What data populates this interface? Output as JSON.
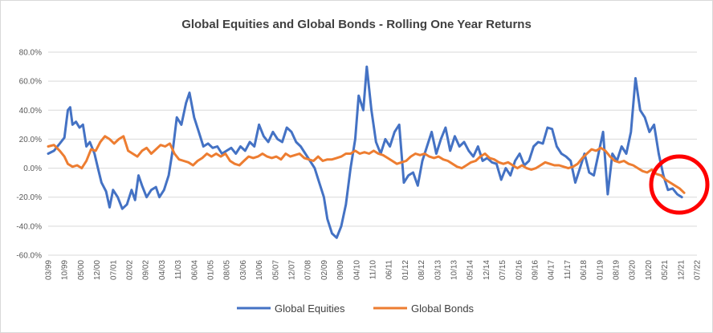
{
  "chart_data": {
    "type": "line",
    "title": "Global Equities and Global Bonds - Rolling One Year Returns",
    "xlabel": "",
    "ylabel": "",
    "ylim": [
      -60,
      80
    ],
    "y_ticks": [
      "80.0%",
      "60.0%",
      "40.0%",
      "20.0%",
      "0.0%",
      "-20.0%",
      "-40.0%",
      "-60.0%"
    ],
    "x_tick_labels": [
      "03/99",
      "10/99",
      "05/00",
      "12/00",
      "07/01",
      "02/02",
      "09/02",
      "04/03",
      "11/03",
      "06/04",
      "01/05",
      "08/05",
      "03/06",
      "10/06",
      "05/07",
      "12/07",
      "07/08",
      "02/09",
      "09/09",
      "04/10",
      "11/10",
      "06/11",
      "01/12",
      "08/12",
      "03/13",
      "10/13",
      "05/14",
      "12/14",
      "07/15",
      "02/16",
      "09/16",
      "04/17",
      "11/17",
      "06/18",
      "01/19",
      "08/19",
      "03/20",
      "10/20",
      "05/21",
      "12/21",
      "07/22"
    ],
    "legend_position": "bottom",
    "grid": true,
    "series": [
      {
        "name": "Global Equities",
        "color": "#4472C4",
        "points": [
          [
            0,
            10
          ],
          [
            0.5,
            12
          ],
          [
            1,
            17
          ],
          [
            1.4,
            21
          ],
          [
            1.7,
            40
          ],
          [
            1.9,
            42
          ],
          [
            2.1,
            30
          ],
          [
            2.4,
            32
          ],
          [
            2.7,
            28
          ],
          [
            3,
            30
          ],
          [
            3.3,
            15
          ],
          [
            3.6,
            18
          ],
          [
            4,
            10
          ],
          [
            4.3,
            0
          ],
          [
            4.6,
            -10
          ],
          [
            5,
            -16
          ],
          [
            5.3,
            -27
          ],
          [
            5.6,
            -15
          ],
          [
            6,
            -20
          ],
          [
            6.4,
            -28
          ],
          [
            6.8,
            -25
          ],
          [
            7.2,
            -15
          ],
          [
            7.5,
            -22
          ],
          [
            7.8,
            -5
          ],
          [
            8.1,
            -12
          ],
          [
            8.5,
            -20
          ],
          [
            8.9,
            -15
          ],
          [
            9.3,
            -13
          ],
          [
            9.6,
            -20
          ],
          [
            10,
            -15
          ],
          [
            10.4,
            -5
          ],
          [
            10.8,
            15
          ],
          [
            11.1,
            35
          ],
          [
            11.5,
            30
          ],
          [
            11.9,
            45
          ],
          [
            12.2,
            52
          ],
          [
            12.6,
            35
          ],
          [
            13,
            25
          ],
          [
            13.4,
            15
          ],
          [
            13.8,
            17
          ],
          [
            14.2,
            14
          ],
          [
            14.6,
            15
          ],
          [
            15,
            10
          ],
          [
            15.4,
            12
          ],
          [
            15.8,
            14
          ],
          [
            16.2,
            10
          ],
          [
            16.6,
            15
          ],
          [
            17,
            12
          ],
          [
            17.4,
            18
          ],
          [
            17.8,
            15
          ],
          [
            18.2,
            30
          ],
          [
            18.6,
            22
          ],
          [
            19,
            18
          ],
          [
            19.4,
            25
          ],
          [
            19.8,
            20
          ],
          [
            20.2,
            18
          ],
          [
            20.6,
            28
          ],
          [
            21,
            25
          ],
          [
            21.4,
            18
          ],
          [
            21.8,
            15
          ],
          [
            22.2,
            10
          ],
          [
            22.6,
            5
          ],
          [
            23,
            0
          ],
          [
            23.4,
            -10
          ],
          [
            23.8,
            -20
          ],
          [
            24.1,
            -35
          ],
          [
            24.5,
            -45
          ],
          [
            24.9,
            -48
          ],
          [
            25.3,
            -40
          ],
          [
            25.7,
            -25
          ],
          [
            26.1,
            0
          ],
          [
            26.5,
            20
          ],
          [
            26.8,
            50
          ],
          [
            27.2,
            40
          ],
          [
            27.5,
            70
          ],
          [
            27.9,
            40
          ],
          [
            28.3,
            18
          ],
          [
            28.7,
            10
          ],
          [
            29.1,
            20
          ],
          [
            29.5,
            15
          ],
          [
            29.9,
            25
          ],
          [
            30.3,
            30
          ],
          [
            30.7,
            -10
          ],
          [
            31.1,
            -5
          ],
          [
            31.5,
            -3
          ],
          [
            31.9,
            -12
          ],
          [
            32.3,
            5
          ],
          [
            32.7,
            15
          ],
          [
            33.1,
            25
          ],
          [
            33.5,
            10
          ],
          [
            33.9,
            20
          ],
          [
            34.3,
            28
          ],
          [
            34.7,
            12
          ],
          [
            35.1,
            22
          ],
          [
            35.5,
            15
          ],
          [
            35.9,
            18
          ],
          [
            36.3,
            12
          ],
          [
            36.7,
            8
          ],
          [
            37.1,
            15
          ],
          [
            37.5,
            5
          ],
          [
            37.9,
            7
          ],
          [
            38.3,
            4
          ],
          [
            38.7,
            3
          ],
          [
            39.1,
            -8
          ],
          [
            39.5,
            0
          ],
          [
            39.9,
            -5
          ],
          [
            40.3,
            5
          ],
          [
            40.7,
            10
          ],
          [
            41.1,
            2
          ],
          [
            41.5,
            5
          ],
          [
            41.9,
            15
          ],
          [
            42.3,
            18
          ],
          [
            42.7,
            17
          ],
          [
            43.1,
            28
          ],
          [
            43.5,
            27
          ],
          [
            43.9,
            15
          ],
          [
            44.3,
            10
          ],
          [
            44.7,
            8
          ],
          [
            45.1,
            5
          ],
          [
            45.5,
            -10
          ],
          [
            45.9,
            0
          ],
          [
            46.3,
            10
          ],
          [
            46.7,
            -3
          ],
          [
            47.1,
            -5
          ],
          [
            47.5,
            10
          ],
          [
            47.9,
            25
          ],
          [
            48.3,
            -18
          ],
          [
            48.7,
            10
          ],
          [
            49.1,
            5
          ],
          [
            49.5,
            15
          ],
          [
            49.9,
            10
          ],
          [
            50.3,
            25
          ],
          [
            50.7,
            62
          ],
          [
            51.1,
            40
          ],
          [
            51.5,
            35
          ],
          [
            51.9,
            25
          ],
          [
            52.3,
            30
          ],
          [
            52.7,
            10
          ],
          [
            53.1,
            -5
          ],
          [
            53.5,
            -15
          ],
          [
            53.9,
            -14
          ],
          [
            54.3,
            -18
          ],
          [
            54.7,
            -20
          ]
        ]
      },
      {
        "name": "Global Bonds",
        "color": "#ED7D31",
        "points": [
          [
            0,
            15
          ],
          [
            0.5,
            16
          ],
          [
            1,
            12
          ],
          [
            1.4,
            8
          ],
          [
            1.7,
            3
          ],
          [
            2.1,
            1
          ],
          [
            2.5,
            2
          ],
          [
            2.9,
            0
          ],
          [
            3.3,
            5
          ],
          [
            3.7,
            13
          ],
          [
            4.1,
            12
          ],
          [
            4.5,
            18
          ],
          [
            4.9,
            22
          ],
          [
            5.3,
            20
          ],
          [
            5.7,
            17
          ],
          [
            6.1,
            20
          ],
          [
            6.5,
            22
          ],
          [
            6.9,
            12
          ],
          [
            7.3,
            10
          ],
          [
            7.7,
            8
          ],
          [
            8.1,
            12
          ],
          [
            8.5,
            14
          ],
          [
            8.9,
            10
          ],
          [
            9.3,
            13
          ],
          [
            9.7,
            16
          ],
          [
            10.1,
            15
          ],
          [
            10.5,
            17
          ],
          [
            10.9,
            10
          ],
          [
            11.3,
            6
          ],
          [
            11.7,
            5
          ],
          [
            12.1,
            4
          ],
          [
            12.5,
            2
          ],
          [
            12.9,
            5
          ],
          [
            13.3,
            7
          ],
          [
            13.7,
            10
          ],
          [
            14.1,
            8
          ],
          [
            14.5,
            10
          ],
          [
            14.9,
            8
          ],
          [
            15.3,
            10
          ],
          [
            15.7,
            5
          ],
          [
            16.1,
            3
          ],
          [
            16.5,
            2
          ],
          [
            16.9,
            5
          ],
          [
            17.3,
            8
          ],
          [
            17.7,
            7
          ],
          [
            18.1,
            8
          ],
          [
            18.5,
            10
          ],
          [
            18.9,
            8
          ],
          [
            19.3,
            7
          ],
          [
            19.7,
            8
          ],
          [
            20.1,
            6
          ],
          [
            20.5,
            10
          ],
          [
            20.9,
            8
          ],
          [
            21.3,
            9
          ],
          [
            21.7,
            10
          ],
          [
            22.1,
            7
          ],
          [
            22.5,
            6
          ],
          [
            22.9,
            5
          ],
          [
            23.3,
            8
          ],
          [
            23.7,
            5
          ],
          [
            24.1,
            6
          ],
          [
            24.5,
            6
          ],
          [
            24.9,
            7
          ],
          [
            25.3,
            8
          ],
          [
            25.7,
            10
          ],
          [
            26.1,
            10
          ],
          [
            26.5,
            12
          ],
          [
            26.9,
            10
          ],
          [
            27.3,
            11
          ],
          [
            27.7,
            10
          ],
          [
            28.1,
            12
          ],
          [
            28.5,
            10
          ],
          [
            28.9,
            9
          ],
          [
            29.3,
            7
          ],
          [
            29.7,
            5
          ],
          [
            30.1,
            3
          ],
          [
            30.5,
            4
          ],
          [
            30.9,
            5
          ],
          [
            31.3,
            8
          ],
          [
            31.7,
            10
          ],
          [
            32.1,
            9
          ],
          [
            32.5,
            10
          ],
          [
            32.9,
            8
          ],
          [
            33.3,
            7
          ],
          [
            33.7,
            8
          ],
          [
            34.1,
            6
          ],
          [
            34.5,
            5
          ],
          [
            34.9,
            3
          ],
          [
            35.3,
            1
          ],
          [
            35.7,
            0
          ],
          [
            36.1,
            2
          ],
          [
            36.5,
            4
          ],
          [
            36.9,
            5
          ],
          [
            37.3,
            8
          ],
          [
            37.7,
            10
          ],
          [
            38.1,
            7
          ],
          [
            38.5,
            6
          ],
          [
            38.9,
            4
          ],
          [
            39.3,
            3
          ],
          [
            39.7,
            4
          ],
          [
            40.1,
            2
          ],
          [
            40.5,
            0
          ],
          [
            40.9,
            2
          ],
          [
            41.3,
            0
          ],
          [
            41.7,
            -1
          ],
          [
            42.1,
            0
          ],
          [
            42.5,
            2
          ],
          [
            42.9,
            4
          ],
          [
            43.3,
            3
          ],
          [
            43.7,
            2
          ],
          [
            44.1,
            2
          ],
          [
            44.5,
            1
          ],
          [
            44.9,
            0
          ],
          [
            45.3,
            1
          ],
          [
            45.7,
            3
          ],
          [
            46.1,
            7
          ],
          [
            46.5,
            10
          ],
          [
            46.9,
            13
          ],
          [
            47.3,
            12
          ],
          [
            47.7,
            14
          ],
          [
            48.1,
            12
          ],
          [
            48.5,
            8
          ],
          [
            48.9,
            5
          ],
          [
            49.3,
            4
          ],
          [
            49.7,
            5
          ],
          [
            50.1,
            3
          ],
          [
            50.5,
            2
          ],
          [
            50.9,
            0
          ],
          [
            51.3,
            -2
          ],
          [
            51.7,
            -3
          ],
          [
            52.1,
            -1
          ],
          [
            52.5,
            -4
          ],
          [
            52.9,
            -5
          ],
          [
            53.3,
            -8
          ],
          [
            53.7,
            -10
          ],
          [
            54.1,
            -12
          ],
          [
            54.5,
            -14
          ],
          [
            54.9,
            -17
          ]
        ]
      }
    ]
  }
}
